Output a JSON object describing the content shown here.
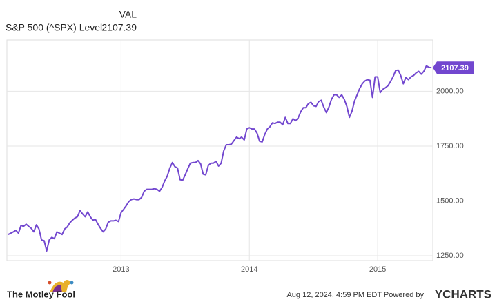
{
  "chart_data": {
    "type": "line",
    "header": {
      "column": "VAL",
      "series_label": "S&P 500 (^SPX) Level"
    },
    "footer": {
      "brand": "The Motley Fool",
      "timestamp": "Aug 12, 2024, 4:59 PM EDT Powered by",
      "provider": "YCHARTS"
    },
    "x": [
      2012.12,
      2012.14,
      2012.16,
      2012.18,
      2012.2,
      2012.22,
      2012.24,
      2012.26,
      2012.28,
      2012.3,
      2012.32,
      2012.34,
      2012.36,
      2012.38,
      2012.4,
      2012.42,
      2012.44,
      2012.46,
      2012.48,
      2012.5,
      2012.52,
      2012.54,
      2012.56,
      2012.58,
      2012.6,
      2012.62,
      2012.64,
      2012.66,
      2012.68,
      2012.7,
      2012.72,
      2012.74,
      2012.76,
      2012.78,
      2012.8,
      2012.82,
      2012.84,
      2012.86,
      2012.88,
      2012.9,
      2012.92,
      2012.94,
      2012.96,
      2012.98,
      2013.0,
      2013.02,
      2013.04,
      2013.06,
      2013.08,
      2013.1,
      2013.12,
      2013.14,
      2013.16,
      2013.18,
      2013.2,
      2013.22,
      2013.24,
      2013.26,
      2013.28,
      2013.3,
      2013.32,
      2013.34,
      2013.36,
      2013.38,
      2013.4,
      2013.42,
      2013.44,
      2013.46,
      2013.48,
      2013.5,
      2013.52,
      2013.54,
      2013.56,
      2013.58,
      2013.6,
      2013.62,
      2013.64,
      2013.66,
      2013.68,
      2013.7,
      2013.72,
      2013.74,
      2013.76,
      2013.78,
      2013.8,
      2013.82,
      2013.84,
      2013.86,
      2013.88,
      2013.9,
      2013.92,
      2013.94,
      2013.96,
      2013.98,
      2014.0,
      2014.02,
      2014.04,
      2014.06,
      2014.08,
      2014.1,
      2014.12,
      2014.14,
      2014.16,
      2014.18,
      2014.2,
      2014.22,
      2014.24,
      2014.26,
      2014.28,
      2014.3,
      2014.32,
      2014.34,
      2014.36,
      2014.38,
      2014.4,
      2014.42,
      2014.44,
      2014.46,
      2014.48,
      2014.5,
      2014.52,
      2014.54,
      2014.56,
      2014.58,
      2014.6,
      2014.62,
      2014.64,
      2014.66,
      2014.68,
      2014.7,
      2014.72,
      2014.74,
      2014.76,
      2014.78,
      2014.8,
      2014.82,
      2014.84,
      2014.86,
      2014.88,
      2014.9,
      2014.92,
      2014.94,
      2014.96,
      2014.98,
      2015.0,
      2015.02,
      2015.04,
      2015.06,
      2015.08,
      2015.1,
      2015.12,
      2015.14,
      2015.16,
      2015.18,
      2015.2,
      2015.22,
      2015.24,
      2015.26,
      2015.28,
      2015.3,
      2015.32,
      2015.34,
      2015.36,
      2015.38,
      2015.4,
      2015.42
    ],
    "series": [
      {
        "name": "S&P 500 (^SPX) Level",
        "color": "#7247cf",
        "values": [
          1347,
          1353,
          1359,
          1366,
          1353,
          1388,
          1384,
          1394,
          1384,
          1375,
          1359,
          1391,
          1372,
          1322,
          1319,
          1272,
          1322,
          1334,
          1328,
          1359,
          1353,
          1347,
          1372,
          1381,
          1400,
          1412,
          1422,
          1428,
          1456,
          1441,
          1428,
          1450,
          1428,
          1412,
          1416,
          1394,
          1375,
          1359,
          1372,
          1403,
          1409,
          1409,
          1412,
          1406,
          1447,
          1462,
          1478,
          1497,
          1506,
          1509,
          1506,
          1506,
          1516,
          1544,
          1553,
          1553,
          1553,
          1556,
          1553,
          1544,
          1562,
          1591,
          1613,
          1650,
          1675,
          1656,
          1650,
          1597,
          1594,
          1619,
          1647,
          1672,
          1675,
          1675,
          1684,
          1669,
          1622,
          1619,
          1662,
          1672,
          1672,
          1681,
          1659,
          1672,
          1728,
          1756,
          1756,
          1759,
          1775,
          1791,
          1784,
          1791,
          1778,
          1828,
          1834,
          1828,
          1828,
          1809,
          1772,
          1769,
          1803,
          1828,
          1838,
          1856,
          1853,
          1859,
          1859,
          1847,
          1881,
          1853,
          1853,
          1875,
          1866,
          1878,
          1906,
          1925,
          1925,
          1944,
          1950,
          1934,
          1931,
          1953,
          1959,
          1928,
          1903,
          1928,
          1963,
          1984,
          1984,
          1972,
          1984,
          1963,
          1931,
          1881,
          1909,
          1956,
          1984,
          2013,
          2034,
          2047,
          2053,
          2050,
          1972,
          2066,
          2066,
          1994,
          2009,
          2016,
          2025,
          2044,
          2066,
          2094,
          2097,
          2072,
          2034,
          2063,
          2053,
          2066,
          2072,
          2084,
          2091,
          2078,
          2091,
          2116,
          2109,
          2107.39
        ]
      }
    ],
    "xlim": [
      2012.11,
      2015.43
    ],
    "xticks": [
      2013,
      2014,
      2015
    ],
    "ylim": [
      1228,
      2234
    ],
    "yticks": [
      {
        "value": 1250,
        "label": "1250.00"
      },
      {
        "value": 1500,
        "label": "1500.00"
      },
      {
        "value": 1750,
        "label": "1750.00"
      },
      {
        "value": 2000,
        "label": "2000.00"
      }
    ],
    "grid": true
  }
}
